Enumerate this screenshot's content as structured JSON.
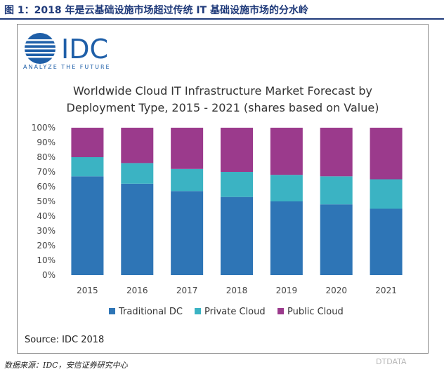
{
  "figure": {
    "caption": "图 1：2018 年是云基础设施市场超过传统 IT 基础设施市场的分水岭",
    "data_source": "数据来源：IDC，安信证券研究中心",
    "watermark": "DTDATA"
  },
  "logo": {
    "text": "IDC",
    "tagline": "ANALYZE THE FUTURE",
    "color": "#1f5fa8"
  },
  "source_note": "Source: IDC 2018",
  "chart_data": {
    "type": "bar",
    "stacked": true,
    "title": "Worldwide Cloud IT Infrastructure Market Forecast by Deployment Type, 2015 - 2021 (shares based on Value)",
    "title_lines": [
      "Worldwide Cloud IT Infrastructure Market Forecast by",
      "Deployment Type, 2015 - 2021 (shares based on Value)"
    ],
    "categories": [
      "2015",
      "2016",
      "2017",
      "2018",
      "2019",
      "2020",
      "2021"
    ],
    "series": [
      {
        "name": "Traditional DC",
        "color": "#2e75b6",
        "values": [
          67,
          62,
          57,
          53,
          50,
          48,
          45
        ]
      },
      {
        "name": "Private Cloud",
        "color": "#3bb3c3",
        "values": [
          13,
          14,
          15,
          17,
          18,
          19,
          20
        ]
      },
      {
        "name": "Public Cloud",
        "color": "#9b3a8c",
        "values": [
          20,
          24,
          28,
          30,
          32,
          33,
          35
        ]
      }
    ],
    "ylim": [
      0,
      100
    ],
    "yticks": [
      "0%",
      "10%",
      "20%",
      "30%",
      "40%",
      "50%",
      "60%",
      "70%",
      "80%",
      "90%",
      "100%"
    ],
    "legend_position": "bottom",
    "grid": false
  }
}
